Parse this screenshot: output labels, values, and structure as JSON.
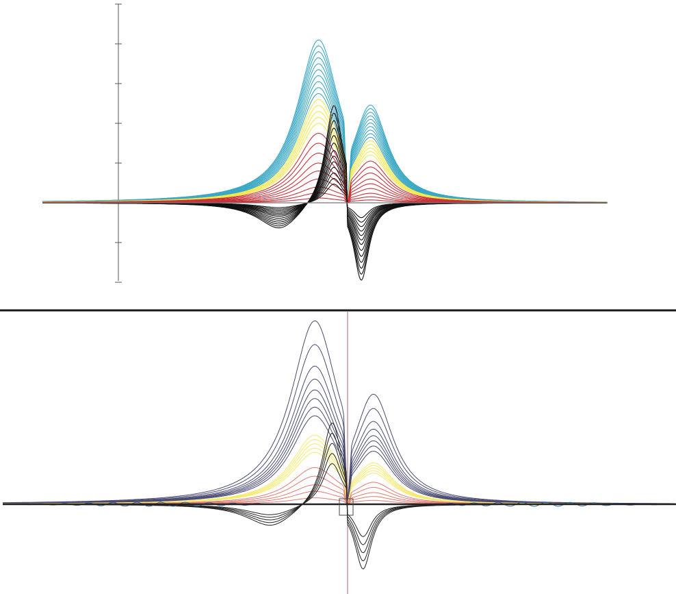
{
  "chart_data": [
    {
      "type": "line",
      "panel": "top",
      "title": "",
      "xlabel": "",
      "ylabel": "",
      "x_range": [
        -1,
        1
      ],
      "ylim": [
        -2,
        5.5
      ],
      "y_tick_values": [
        -2,
        -1,
        1,
        2,
        3,
        4,
        5
      ],
      "grid": false,
      "legend": "none",
      "series": [
        {
          "color": "#3aa8c4",
          "shape": "dispersion-bipolar",
          "amplitudes": [
            4.1,
            3.95,
            3.8,
            3.65,
            3.5,
            3.35,
            3.2,
            3.05,
            2.9,
            2.75
          ]
        },
        {
          "color": "#f4e84a",
          "shape": "dispersion-bipolar",
          "amplitudes": [
            2.6,
            2.45,
            2.3,
            2.15,
            2.0
          ]
        },
        {
          "color": "#c8323a",
          "shape": "dispersion-bipolar",
          "amplitudes": [
            1.75,
            1.5,
            1.25,
            1.0,
            0.8,
            0.6,
            0.4,
            0.25,
            0.12
          ]
        },
        {
          "color": "#111111",
          "shape": "absorption-derivative",
          "amplitudes": [
            2.6,
            2.4,
            2.2,
            2.0,
            1.8,
            1.6,
            1.4,
            1.25,
            1.1,
            0.95,
            0.8,
            0.65,
            0.5
          ]
        }
      ]
    },
    {
      "type": "line",
      "panel": "bottom",
      "title": "",
      "xlabel": "",
      "ylabel": "",
      "x_range": [
        -1,
        1
      ],
      "ylim": [
        -2,
        4.5
      ],
      "grid": false,
      "legend": "none",
      "series": [
        {
          "color": "#4a4a72",
          "shape": "dispersion-bipolar",
          "amplitudes": [
            4.25,
            3.7,
            3.2,
            2.9,
            2.65,
            2.45,
            2.25,
            2.05
          ]
        },
        {
          "color": "#f4ea6a",
          "shape": "dispersion-bipolar",
          "amplitudes": [
            1.6,
            1.5,
            1.4,
            1.3,
            1.2
          ]
        },
        {
          "color": "#e07a70",
          "shape": "dispersion-bipolar",
          "amplitudes": [
            0.85,
            0.65,
            0.45,
            0.3,
            0.15
          ]
        },
        {
          "color": "#222222",
          "shape": "absorption-derivative",
          "amplitudes": [
            2.0,
            1.75,
            1.5,
            1.25,
            1.0
          ]
        },
        {
          "color": "#2f5f9a",
          "shape": "wing-noise",
          "amplitudes": [
            0.6
          ]
        }
      ]
    }
  ]
}
